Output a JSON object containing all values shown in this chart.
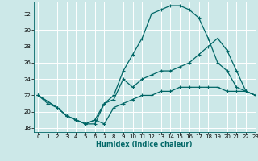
{
  "title": "",
  "xlabel": "Humidex (Indice chaleur)",
  "bg_color": "#cce8e8",
  "grid_color": "#ffffff",
  "line_color": "#006666",
  "xlim": [
    -0.5,
    23
  ],
  "ylim": [
    17.5,
    33.5
  ],
  "xticks": [
    0,
    1,
    2,
    3,
    4,
    5,
    6,
    7,
    8,
    9,
    10,
    11,
    12,
    13,
    14,
    15,
    16,
    17,
    18,
    19,
    20,
    21,
    22,
    23
  ],
  "yticks": [
    18,
    20,
    22,
    24,
    26,
    28,
    30,
    32
  ],
  "line1_x": [
    0,
    1,
    2,
    3,
    4,
    5,
    6,
    7,
    8,
    9,
    10,
    11,
    12,
    13,
    14,
    15,
    16,
    17,
    18,
    19,
    20,
    21,
    22,
    23
  ],
  "line1_y": [
    22,
    21,
    20.5,
    19.5,
    19,
    18.5,
    18.5,
    21,
    22,
    25,
    27,
    29,
    32,
    32.5,
    33,
    33,
    32.5,
    31.5,
    29,
    26,
    25,
    23,
    22.5,
    22
  ],
  "line2_x": [
    0,
    2,
    3,
    4,
    5,
    6,
    7,
    8,
    9,
    10,
    11,
    12,
    13,
    14,
    15,
    16,
    17,
    18,
    19,
    20,
    21,
    22,
    23
  ],
  "line2_y": [
    22,
    20.5,
    19.5,
    19,
    18.5,
    19,
    21,
    21.5,
    24,
    23,
    24,
    24.5,
    25,
    25,
    25.5,
    26,
    27,
    28,
    29,
    27.5,
    25,
    22.5,
    22
  ],
  "line3_x": [
    0,
    2,
    3,
    4,
    5,
    6,
    7,
    8,
    9,
    10,
    11,
    12,
    13,
    14,
    15,
    16,
    17,
    18,
    19,
    20,
    21,
    22,
    23
  ],
  "line3_y": [
    22,
    20.5,
    19.5,
    19,
    18.5,
    19,
    18.5,
    20.5,
    21,
    21.5,
    22,
    22,
    22.5,
    22.5,
    23,
    23,
    23,
    23,
    23,
    22.5,
    22.5,
    22.5,
    22
  ]
}
